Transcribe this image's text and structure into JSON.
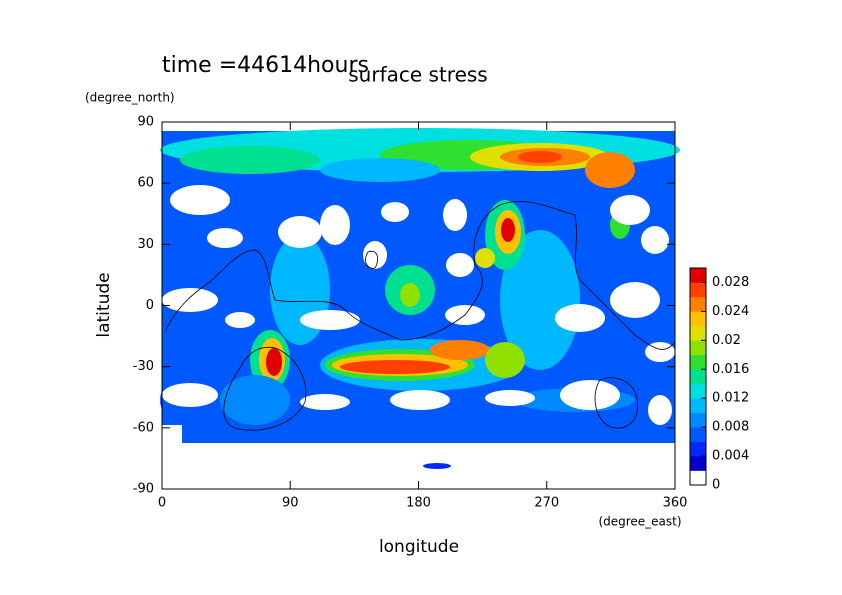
{
  "chart_data": {
    "type": "contour",
    "title": "surface stress",
    "subtitle": "time =44614hours",
    "x_label": "longitude",
    "x_unit": "(degree_east)",
    "y_label": "latitude",
    "y_unit": "(degree_north)",
    "xlim": [
      0,
      360
    ],
    "xticks": [
      0,
      90,
      180,
      270,
      360
    ],
    "ylim": [
      -90,
      90
    ],
    "yticks": [
      -90,
      -60,
      -30,
      0,
      30,
      60,
      90
    ],
    "colorbar": {
      "lim": [
        0,
        0.03
      ],
      "ticks": [
        0,
        0.004,
        0.008,
        0.012,
        0.016,
        0.02,
        0.024,
        0.028
      ],
      "colors": [
        "#ffffff",
        "#0000c8",
        "#0028ff",
        "#0058ff",
        "#0088ff",
        "#00b8ff",
        "#00e0e0",
        "#00e090",
        "#30e030",
        "#90e000",
        "#e0e000",
        "#ffc000",
        "#ff8000",
        "#ff4000",
        "#e00000"
      ]
    }
  }
}
